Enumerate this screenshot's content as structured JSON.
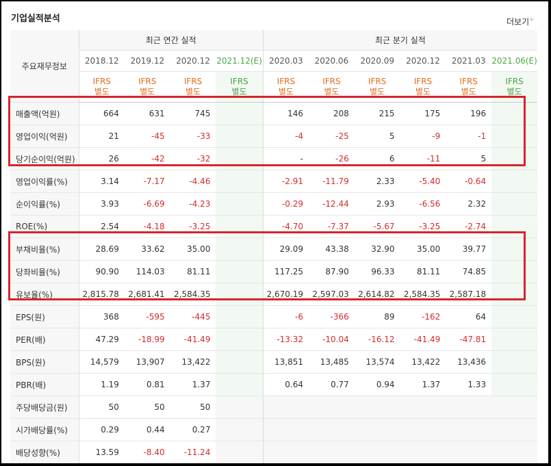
{
  "title": "기업실적분석",
  "more_label": "더보기",
  "more_plus": "+",
  "row_header": "주요재무정보",
  "groups": {
    "annual": "최근 연간 실적",
    "quarter": "최근 분기 실적"
  },
  "periods": [
    "2018.12",
    "2019.12",
    "2020.12",
    "2021.12(E)",
    "2020.03",
    "2020.06",
    "2020.09",
    "2020.12",
    "2021.03",
    "2021.06(E)"
  ],
  "ifrs_top": "IFRS",
  "ifrs_bottom": "별도",
  "rows": [
    {
      "label": "매출액(억원)",
      "values": [
        "664",
        "631",
        "745",
        "",
        "146",
        "208",
        "215",
        "175",
        "196",
        ""
      ]
    },
    {
      "label": "영업이익(억원)",
      "values": [
        "21",
        "-45",
        "-33",
        "",
        "-4",
        "-25",
        "5",
        "-9",
        "-1",
        ""
      ]
    },
    {
      "label": "당기순이익(억원)",
      "values": [
        "26",
        "-42",
        "-32",
        "",
        "-",
        "-26",
        "6",
        "-11",
        "5",
        ""
      ]
    },
    {
      "label": "영업이익률(%)",
      "values": [
        "3.14",
        "-7.17",
        "-4.46",
        "",
        "-2.91",
        "-11.79",
        "2.33",
        "-5.40",
        "-0.64",
        ""
      ]
    },
    {
      "label": "순이익률(%)",
      "values": [
        "3.93",
        "-6.69",
        "-4.23",
        "",
        "-0.29",
        "-12.44",
        "2.93",
        "-6.56",
        "2.32",
        ""
      ]
    },
    {
      "label": "ROE(%)",
      "values": [
        "2.54",
        "-4.18",
        "-3.25",
        "",
        "-4.70",
        "-7.37",
        "-5.67",
        "-3.25",
        "-2.74",
        ""
      ]
    },
    {
      "label": "부채비율(%)",
      "values": [
        "28.69",
        "33.62",
        "35.00",
        "",
        "29.09",
        "43.38",
        "32.90",
        "35.00",
        "39.77",
        ""
      ]
    },
    {
      "label": "당좌비율(%)",
      "values": [
        "90.90",
        "114.03",
        "81.11",
        "",
        "117.25",
        "87.90",
        "96.33",
        "81.11",
        "74.85",
        ""
      ]
    },
    {
      "label": "유보율(%)",
      "values": [
        "2,815.78",
        "2,681.41",
        "2,584.35",
        "",
        "2,670.19",
        "2,597.03",
        "2,614.82",
        "2,584.35",
        "2,587.18",
        ""
      ]
    },
    {
      "label": "EPS(원)",
      "values": [
        "368",
        "-595",
        "-445",
        "",
        "-6",
        "-366",
        "89",
        "-162",
        "64",
        ""
      ]
    },
    {
      "label": "PER(배)",
      "values": [
        "47.29",
        "-18.99",
        "-41.49",
        "",
        "-13.32",
        "-10.04",
        "-16.12",
        "-41.49",
        "-47.81",
        ""
      ]
    },
    {
      "label": "BPS(원)",
      "values": [
        "14,579",
        "13,907",
        "13,422",
        "",
        "13,851",
        "13,485",
        "13,574",
        "13,422",
        "13,436",
        ""
      ]
    },
    {
      "label": "PBR(배)",
      "values": [
        "1.19",
        "0.81",
        "1.37",
        "",
        "0.64",
        "0.77",
        "0.94",
        "1.37",
        "1.33",
        ""
      ]
    },
    {
      "label": "주당배당금(원)",
      "values": [
        "50",
        "50",
        "50",
        "",
        "",
        "",
        "",
        "",
        "",
        ""
      ],
      "quarter_empty": true
    },
    {
      "label": "시가배당률(%)",
      "values": [
        "0.29",
        "0.44",
        "0.27",
        "",
        "",
        "",
        "",
        "",
        "",
        ""
      ],
      "quarter_empty": true
    },
    {
      "label": "배당성향(%)",
      "values": [
        "13.59",
        "-8.40",
        "-11.24",
        "",
        "",
        "",
        "",
        "",
        "",
        ""
      ],
      "quarter_empty": true
    }
  ]
}
